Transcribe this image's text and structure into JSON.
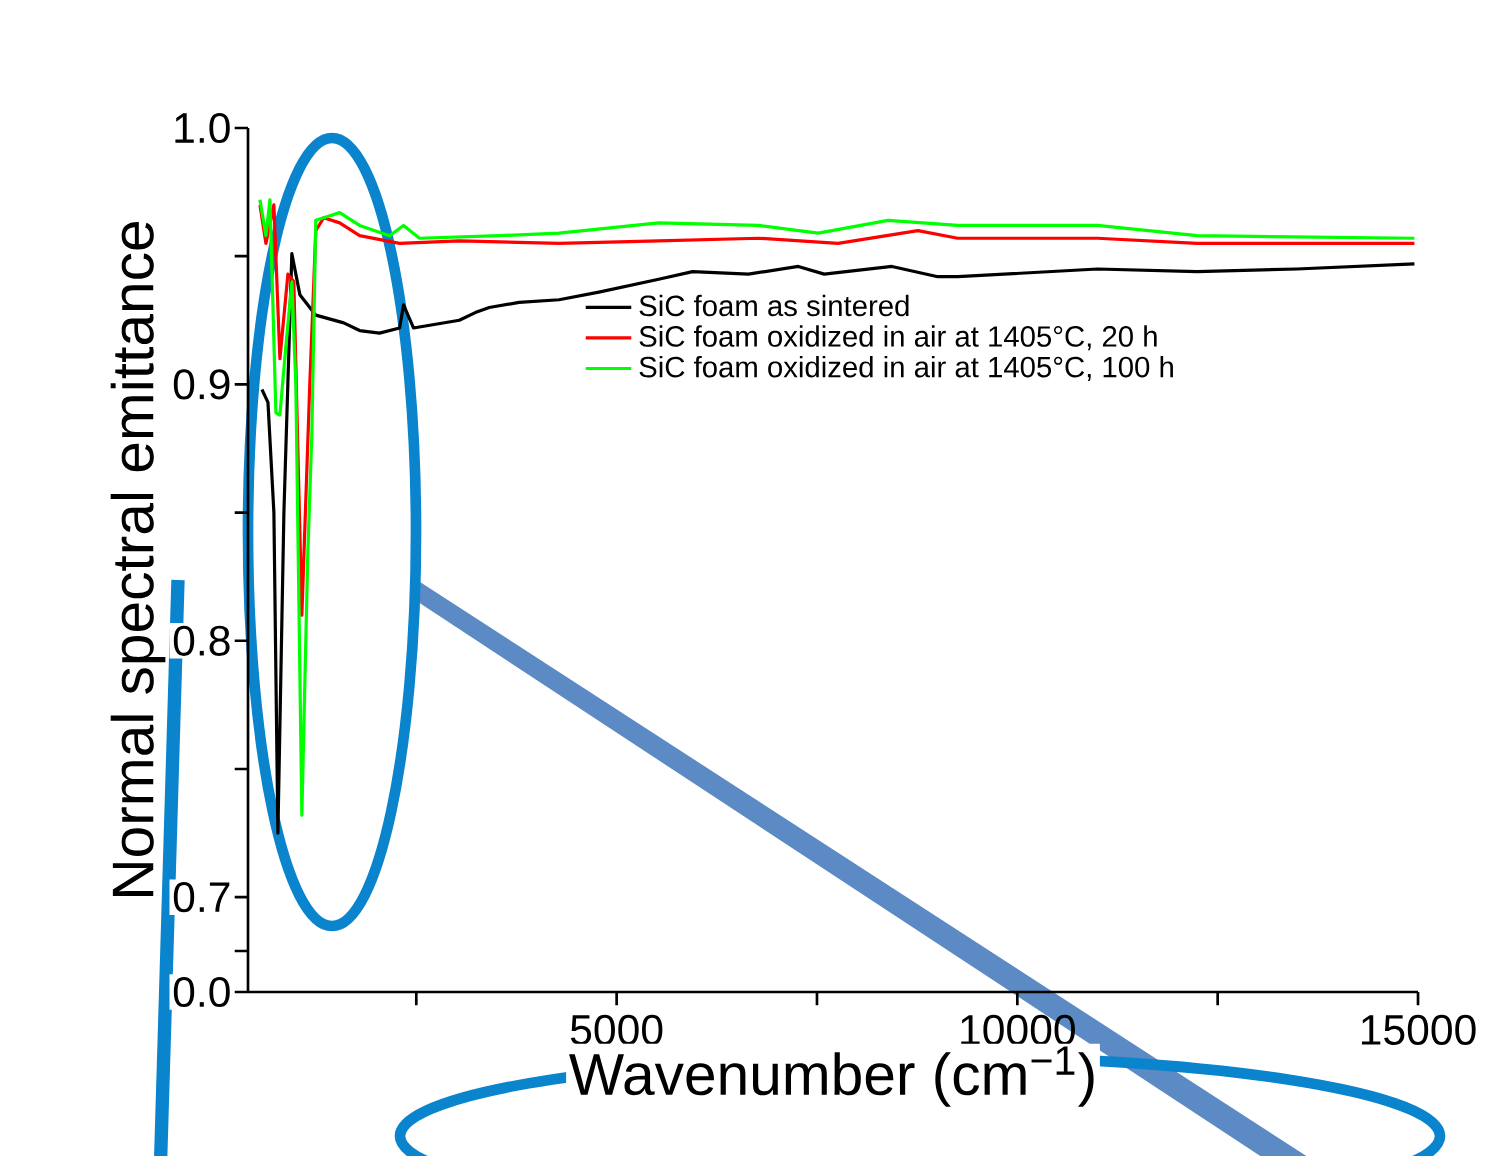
{
  "chart_data": {
    "type": "line",
    "xlabel": "Wavenumber (cm$^{−1}$)",
    "ylabel": "Normal spectral emittance",
    "xlim": [
      400,
      15000
    ],
    "xticks": [
      {
        "value": 2500,
        "label": null
      },
      5000,
      {
        "value": 7500,
        "label": null
      },
      10000,
      {
        "value": 12500,
        "label": null
      },
      15000
    ],
    "ylim": [
      0.663,
      1.0
    ],
    "annotations": [
      "0.0"
    ],
    "yticks": [
      {
        "value": 0.663,
        "label": null
      },
      {
        "value": 0.679,
        "label": null
      },
      0.7,
      {
        "value": 0.75,
        "label": null
      },
      0.8,
      {
        "value": 0.85,
        "label": null
      },
      0.9,
      {
        "value": 0.95,
        "label": null
      },
      {
        "value": 1.0,
        "label": "1.0"
      }
    ],
    "grid": false,
    "legend": "top right",
    "marker": "none",
    "line_style": "solid",
    "series": [
      {
        "name": "SiC foam as sintered",
        "color": "#000000",
        "x": [
          574,
          649,
          723,
          773,
          848,
          947,
          1047,
          1246,
          1594,
          1793,
          2042,
          2291,
          2341,
          2465,
          3037,
          3236,
          3410,
          3784,
          4281,
          4779,
          5525,
          5948,
          6645,
          7267,
          7590,
          8436,
          9008,
          9257,
          10999,
          12243,
          13487,
          14955
        ],
        "values": [
          0.898,
          0.893,
          0.85,
          0.725,
          0.85,
          0.951,
          0.935,
          0.927,
          0.924,
          0.921,
          0.92,
          0.922,
          0.931,
          0.922,
          0.925,
          0.928,
          0.93,
          0.932,
          0.933,
          0.936,
          0.941,
          0.944,
          0.943,
          0.946,
          0.943,
          0.946,
          0.942,
          0.942,
          0.945,
          0.944,
          0.945,
          0.947
        ]
      },
      {
        "name": "SiC foam oxidized in air at 1405°C, 20 h",
        "color": "#ff0000",
        "x": [
          549,
          624,
          723,
          798,
          898,
          972,
          1072,
          1171,
          1246,
          1345,
          1544,
          1793,
          2291,
          3037,
          4281,
          5525,
          6769,
          7764,
          8760,
          9257,
          10999,
          12243,
          14955
        ],
        "values": [
          0.97,
          0.955,
          0.97,
          0.91,
          0.943,
          0.94,
          0.81,
          0.9,
          0.96,
          0.965,
          0.963,
          0.958,
          0.955,
          0.956,
          0.955,
          0.956,
          0.957,
          0.955,
          0.96,
          0.957,
          0.957,
          0.955,
          0.955
        ]
      },
      {
        "name": "SiC foam oxidized in air at 1405°C, 100 h",
        "color": "#00ff00",
        "x": [
          549,
          624,
          674,
          748,
          798,
          873,
          947,
          997,
          1072,
          1146,
          1196,
          1246,
          1345,
          1544,
          1793,
          2166,
          2341,
          2540,
          3535,
          4281,
          5525,
          6769,
          7515,
          8386,
          9257,
          10999,
          12243,
          14955
        ],
        "values": [
          0.972,
          0.958,
          0.972,
          0.889,
          0.888,
          0.915,
          0.94,
          0.9,
          0.732,
          0.834,
          0.88,
          0.964,
          0.965,
          0.967,
          0.962,
          0.958,
          0.962,
          0.957,
          0.958,
          0.959,
          0.963,
          0.962,
          0.959,
          0.964,
          0.962,
          0.962,
          0.958,
          0.957
        ]
      }
    ]
  }
}
